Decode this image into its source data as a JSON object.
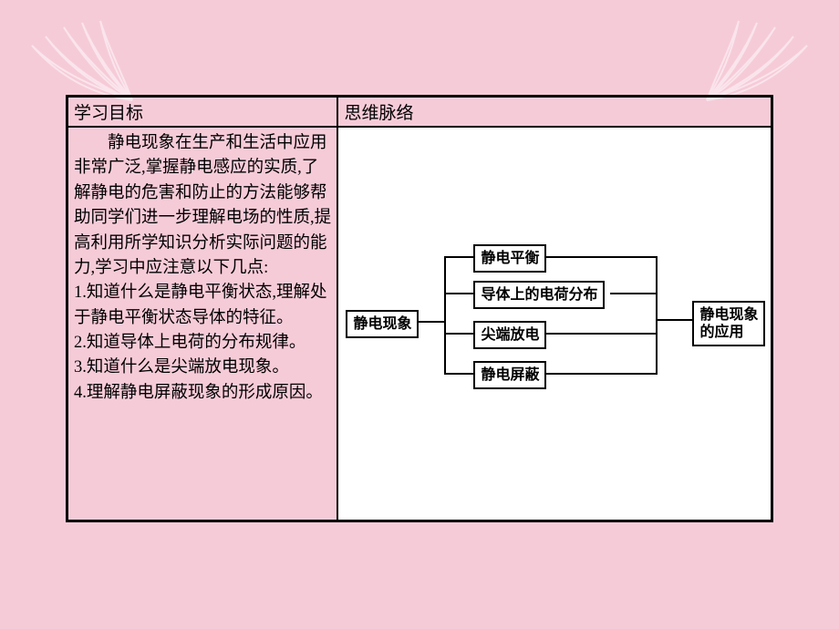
{
  "table": {
    "header_left": "学习目标",
    "header_right": "思维脉络",
    "left_intro": "静电现象在生产和生活中应用非常广泛,掌握静电感应的实质,了解静电的危害和防止的方法能够帮助同学们进一步理解电场的性质,提高利用所学知识分析实际问题的能力,学习中应注意以下几点:",
    "left_points": [
      "1.知道什么是静电平衡状态,理解处于静电平衡状态导体的特征。",
      "2.知道导体上电荷的分布规律。",
      "3.知道什么是尖端放电现象。",
      "4.理解静电屏蔽现象的形成原因。"
    ]
  },
  "diagram": {
    "root": "静电现象",
    "branches": [
      "静电平衡",
      "导体上的电荷分布",
      "尖端放电",
      "静电屏蔽"
    ],
    "result": "静电现象的应用",
    "colors": {
      "box_border": "#000000",
      "box_bg": "#ffffff",
      "line": "#000000",
      "font_size": 16
    }
  },
  "style": {
    "page_bg": "#f6cbd8",
    "table_border": "#000000",
    "right_cell_bg": "#ffffff",
    "body_font_size": 18.5,
    "header_font_size": 19
  }
}
